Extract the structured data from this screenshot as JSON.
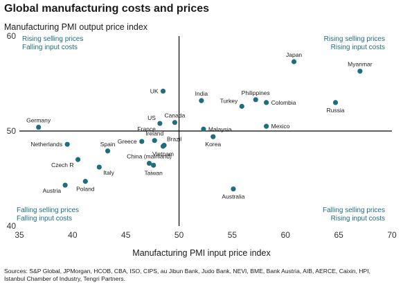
{
  "title": "Global manufacturing costs and prices",
  "chart_data": {
    "type": "scatter",
    "title": "Global manufacturing costs and prices",
    "xlabel": "Manufacturing PMI input price index",
    "ylabel": "Manufacturing PMI output price index",
    "xlim": [
      35,
      70
    ],
    "ylim": [
      40,
      60
    ],
    "xticks": [
      "35",
      "40",
      "45",
      "50",
      "55",
      "60",
      "65",
      "70"
    ],
    "yticks": [
      "40",
      "50",
      "60"
    ],
    "grid": false,
    "reference_lines": {
      "x": 50,
      "y": 50
    },
    "marker_color": "#1f6e7e",
    "quadrant_color": "#1f6e7e",
    "quadrant_labels": {
      "top_left": [
        "Rising selling prices",
        "Falling input costs"
      ],
      "top_right": [
        "Rising selling prices",
        "Rising input costs"
      ],
      "bottom_left": [
        "Falling selling prices",
        "Falling input costs"
      ],
      "bottom_right": [
        "Falling selling prices",
        "Rising input costs"
      ]
    },
    "points": [
      {
        "label": "Germany",
        "x": 36.8,
        "y": 50.4,
        "pos": "above"
      },
      {
        "label": "Netherlands",
        "x": 39.5,
        "y": 48.6,
        "pos": "left"
      },
      {
        "label": "Czech R",
        "x": 40.5,
        "y": 47.0,
        "pos": "below-left"
      },
      {
        "label": "Austria",
        "x": 39.3,
        "y": 44.3,
        "pos": "below-left"
      },
      {
        "label": "Poland",
        "x": 41.2,
        "y": 44.7,
        "pos": "below"
      },
      {
        "label": "Italy",
        "x": 42.5,
        "y": 46.2,
        "pos": "below-right"
      },
      {
        "label": "Spain",
        "x": 43.3,
        "y": 47.9,
        "pos": "above"
      },
      {
        "label": "Greece",
        "x": 46.5,
        "y": 48.9,
        "pos": "left"
      },
      {
        "label": "Ireland",
        "x": 47.7,
        "y": 49.0,
        "pos": "above"
      },
      {
        "label": "Brazil",
        "x": 48.6,
        "y": 48.5,
        "pos": "above-right"
      },
      {
        "label": "Vietnam",
        "x": 48.5,
        "y": 48.4,
        "pos": "below"
      },
      {
        "label": "China (mainland)",
        "x": 47.2,
        "y": 46.6,
        "pos": "above"
      },
      {
        "label": "Taiwan",
        "x": 47.6,
        "y": 46.4,
        "pos": "below"
      },
      {
        "label": "France",
        "x": 48.2,
        "y": 50.8,
        "pos": "below-left"
      },
      {
        "label": "US",
        "x": 48.2,
        "y": 50.8,
        "pos": "above-left"
      },
      {
        "label": "Canada",
        "x": 49.6,
        "y": 50.9,
        "pos": "above"
      },
      {
        "label": "UK",
        "x": 48.5,
        "y": 54.2,
        "pos": "left"
      },
      {
        "label": "India",
        "x": 52.1,
        "y": 53.2,
        "pos": "above"
      },
      {
        "label": "Malaysia",
        "x": 52.3,
        "y": 50.2,
        "pos": "right"
      },
      {
        "label": "Korea",
        "x": 53.2,
        "y": 49.4,
        "pos": "below"
      },
      {
        "label": "Turkey",
        "x": 55.9,
        "y": 52.6,
        "pos": "above-left"
      },
      {
        "label": "Philippines",
        "x": 57.2,
        "y": 53.3,
        "pos": "above"
      },
      {
        "label": "Colombia",
        "x": 58.2,
        "y": 53.0,
        "pos": "right"
      },
      {
        "label": "Mexico",
        "x": 58.2,
        "y": 50.5,
        "pos": "right"
      },
      {
        "label": "Australia",
        "x": 55.1,
        "y": 43.9,
        "pos": "below"
      },
      {
        "label": "Japan",
        "x": 60.8,
        "y": 57.3,
        "pos": "above"
      },
      {
        "label": "Myanmar",
        "x": 67.0,
        "y": 56.3,
        "pos": "above"
      },
      {
        "label": "Russia",
        "x": 64.7,
        "y": 53.0,
        "pos": "below"
      }
    ]
  },
  "sources": "Sources: S&P Global, JPMorgan, HCOB, CBA, ISO, CIPS, au Jibun Bank, Judo Bank, NEVI, BME, Bank Austria, AIB, AERCE, Caixin, HPI, Istanbul Chamber of Industry, Tengri Partners."
}
